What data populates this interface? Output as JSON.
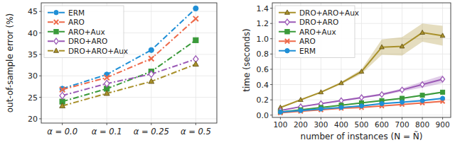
{
  "chart_data": [
    {
      "type": "line",
      "y_label": "out-of-sample error (%)",
      "categories": [
        "α = 0.0",
        "α = 0.1",
        "α = 0.25",
        "α = 0.5"
      ],
      "ylim": [
        19,
        47
      ],
      "yticks": [
        20,
        25,
        30,
        35,
        40,
        45
      ],
      "grid": true,
      "legend": "top-left",
      "series": [
        {
          "name": "ERM",
          "color": "#1f8fd6",
          "marker": "circle",
          "line_style": "dashdot",
          "values": [
            27.0,
            30.3,
            36.0,
            45.7
          ]
        },
        {
          "name": "ARO",
          "color": "#ee6a4a",
          "marker": "x",
          "line_style": "dashdot",
          "values": [
            26.8,
            29.6,
            34.0,
            43.3
          ]
        },
        {
          "name": "ARO+Aux",
          "color": "#3a9a3a",
          "marker": "square",
          "line_style": "dashdot",
          "values": [
            24.0,
            27.0,
            31.0,
            38.3
          ]
        },
        {
          "name": "DRO+ARO",
          "color": "#9b59b6",
          "marker": "diamond",
          "line_style": "dashdot",
          "values": [
            25.4,
            28.2,
            30.4,
            33.9
          ]
        },
        {
          "name": "DRO+ARO+Aux",
          "color": "#a8902a",
          "marker": "triangle",
          "line_style": "dashdot",
          "values": [
            23.0,
            25.9,
            28.7,
            32.7
          ]
        }
      ]
    },
    {
      "type": "line",
      "x_label": "number of instances (N = Ñ)",
      "y_label": "time (seconds)",
      "x": [
        100,
        200,
        300,
        400,
        500,
        600,
        700,
        800,
        900
      ],
      "xlim": [
        60,
        940
      ],
      "xticks": [
        100,
        200,
        300,
        400,
        500,
        600,
        700,
        800,
        900
      ],
      "ylim": [
        -0.03,
        1.47
      ],
      "yticks": [
        {
          "value": 0,
          "label": "0.0"
        },
        0.2,
        0.4,
        0.6,
        0.8,
        {
          "value": 1,
          "label": "1.0"
        },
        1.2,
        1.4
      ],
      "grid": true,
      "legend": "top-left",
      "series": [
        {
          "name": "DRO+ARO+Aux",
          "color": "#a8902a",
          "marker": "triangle",
          "line_style": "solid",
          "values": [
            0.1,
            0.2,
            0.3,
            0.42,
            0.57,
            0.89,
            0.9,
            1.08,
            1.04
          ],
          "errors": [
            0.01,
            0.01,
            0.01,
            0.015,
            0.03,
            0.1,
            0.12,
            0.12,
            0.13
          ]
        },
        {
          "name": "DRO+ARO",
          "color": "#9b59b6",
          "marker": "diamond",
          "line_style": "solid",
          "values": [
            0.06,
            0.11,
            0.15,
            0.19,
            0.23,
            0.27,
            0.33,
            0.4,
            0.47
          ],
          "errors": [
            0.005,
            0.005,
            0.005,
            0.01,
            0.01,
            0.015,
            0.02,
            0.04,
            0.05
          ]
        },
        {
          "name": "ARO+Aux",
          "color": "#3a9a3a",
          "marker": "square",
          "line_style": "solid",
          "values": [
            0.04,
            0.07,
            0.1,
            0.13,
            0.16,
            0.19,
            0.22,
            0.26,
            0.3
          ],
          "errors": [
            0.003,
            0.004,
            0.005,
            0.005,
            0.006,
            0.007,
            0.008,
            0.01,
            0.01
          ]
        },
        {
          "name": "ARO",
          "color": "#ee6a4a",
          "marker": "x",
          "line_style": "solid",
          "values": [
            0.03,
            0.05,
            0.07,
            0.09,
            0.1,
            0.12,
            0.14,
            0.16,
            0.18
          ],
          "errors": [
            0.002,
            0.003,
            0.003,
            0.004,
            0.004,
            0.005,
            0.005,
            0.006,
            0.007
          ]
        },
        {
          "name": "ERM",
          "color": "#1f8fd6",
          "marker": "circle",
          "line_style": "solid",
          "values": [
            0.04,
            0.06,
            0.08,
            0.1,
            0.12,
            0.15,
            0.17,
            0.19,
            0.22
          ],
          "errors": [
            0.002,
            0.003,
            0.003,
            0.004,
            0.004,
            0.005,
            0.006,
            0.007,
            0.008
          ]
        }
      ]
    }
  ]
}
